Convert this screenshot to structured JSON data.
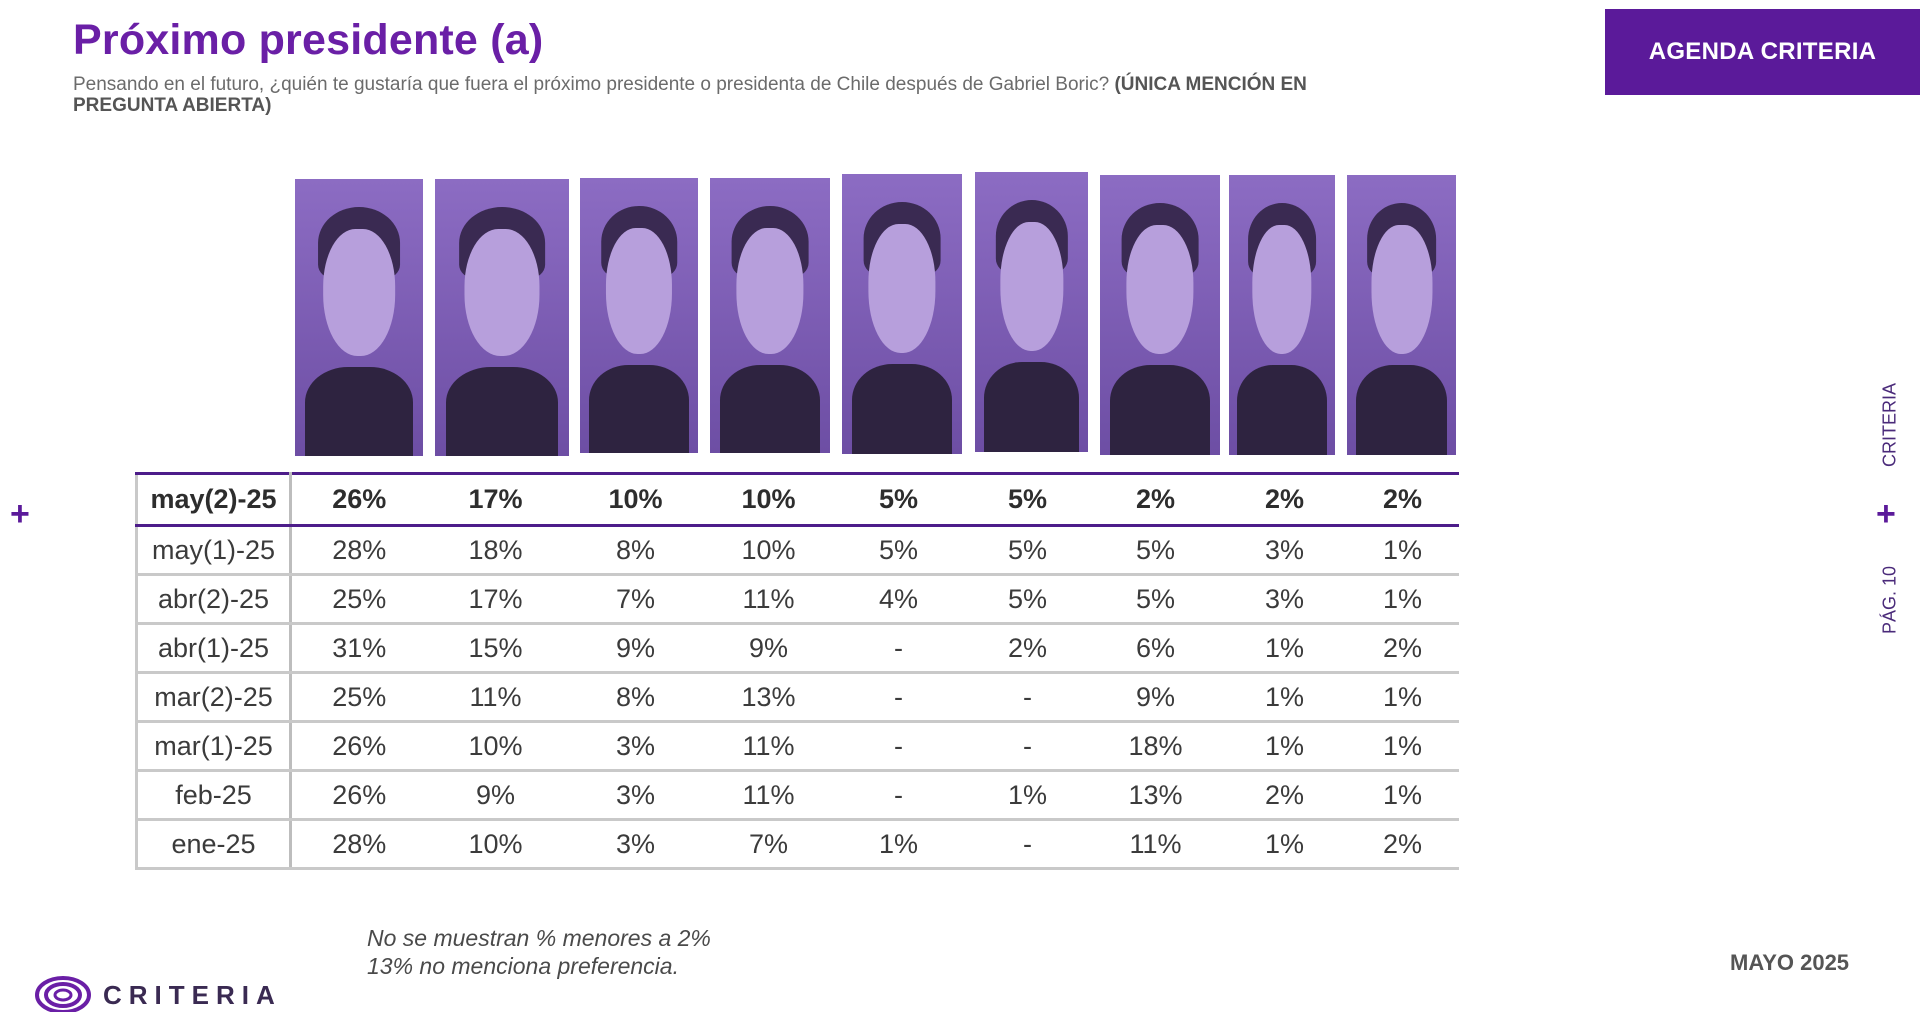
{
  "title": "Próximo presidente (a)",
  "subtitle": {
    "text": "Pensando en el futuro, ¿quién te gustaría que fuera el próximo presidente o presidenta de Chile después de Gabriel Boric?",
    "bold": "(ÚNICA MENCIÓN EN PREGUNTA ABIERTA)"
  },
  "agenda_button": "AGENDA CRITERIA",
  "side": {
    "brand": "CRITERIA",
    "page": "PÁG. 10"
  },
  "colors": {
    "brand": "#5b1a9a",
    "title": "#6a1fa6",
    "photo_tint": "#7d5fb0"
  },
  "table": {
    "rows": [
      {
        "label": "may(2)-25",
        "values": [
          "26%",
          "17%",
          "10%",
          "10%",
          "5%",
          "5%",
          "2%",
          "2%",
          "2%"
        ]
      },
      {
        "label": "may(1)-25",
        "values": [
          "28%",
          "18%",
          "8%",
          "10%",
          "5%",
          "5%",
          "5%",
          "3%",
          "1%"
        ]
      },
      {
        "label": "abr(2)-25",
        "values": [
          "25%",
          "17%",
          "7%",
          "11%",
          "4%",
          "5%",
          "5%",
          "3%",
          "1%"
        ]
      },
      {
        "label": "abr(1)-25",
        "values": [
          "31%",
          "15%",
          "9%",
          "9%",
          "-",
          "2%",
          "6%",
          "1%",
          "2%"
        ]
      },
      {
        "label": "mar(2)-25",
        "values": [
          "25%",
          "11%",
          "8%",
          "13%",
          "-",
          "-",
          "9%",
          "1%",
          "1%"
        ]
      },
      {
        "label": "mar(1)-25",
        "values": [
          "26%",
          "10%",
          "3%",
          "11%",
          "-",
          "-",
          "18%",
          "1%",
          "1%"
        ]
      },
      {
        "label": "feb-25",
        "values": [
          "26%",
          "9%",
          "3%",
          "11%",
          "-",
          "1%",
          "13%",
          "2%",
          "1%"
        ]
      },
      {
        "label": "ene-25",
        "values": [
          "28%",
          "10%",
          "3%",
          "7%",
          "1%",
          "-",
          "11%",
          "1%",
          "2%"
        ]
      }
    ]
  },
  "notes": [
    "No se muestran % menores a 2%",
    "13% no menciona preferencia."
  ],
  "date": "MAYO 2025",
  "logo_text": "CRITERIA"
}
